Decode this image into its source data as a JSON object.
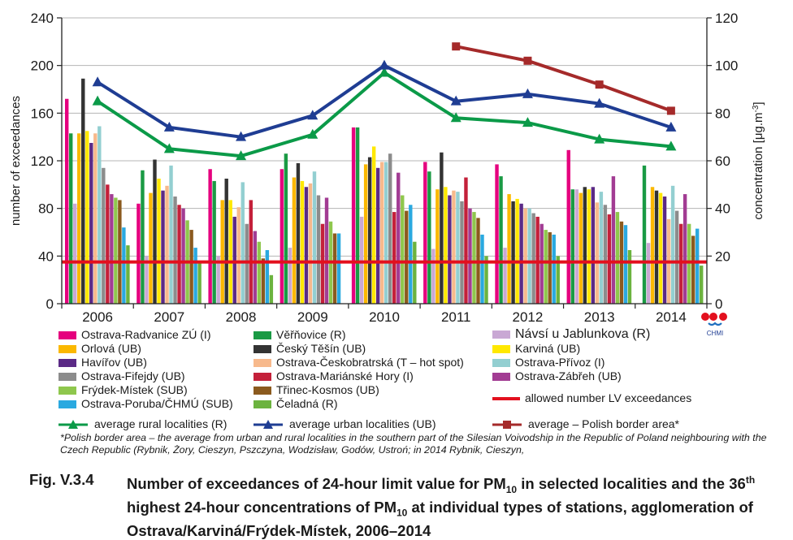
{
  "chart_data": {
    "type": "bar",
    "categories": [
      "2006",
      "2007",
      "2008",
      "2009",
      "2010",
      "2011",
      "2012",
      "2013",
      "2014"
    ],
    "y_left": {
      "label": "number of exceedances",
      "ticks": [
        0,
        40,
        80,
        120,
        160,
        200,
        240
      ],
      "range": [
        0,
        240
      ]
    },
    "y_right": {
      "label": "concentration [μg.m-3]",
      "ticks": [
        0,
        20,
        40,
        60,
        80,
        100,
        120
      ],
      "range": [
        0,
        120
      ]
    },
    "bar_series": [
      {
        "name": "Ostrava-Radvanice ZÚ (I)",
        "color": "#e5007e",
        "values": [
          172,
          84,
          113,
          113,
          148,
          119,
          117,
          129,
          null
        ]
      },
      {
        "name": "Věřňovice (R)",
        "color": "#1a9a44",
        "values": [
          143,
          112,
          103,
          126,
          148,
          111,
          107,
          96,
          116
        ]
      },
      {
        "name": "Návsí u Jablunkova (R)",
        "color": "#c9a8d4",
        "values": [
          84,
          40,
          40,
          47,
          73,
          46,
          47,
          96,
          51
        ]
      },
      {
        "name": "Orlová (UB)",
        "color": "#fbb800",
        "values": [
          143,
          93,
          87,
          106,
          117,
          96,
          92,
          93,
          98
        ]
      },
      {
        "name": "Český Těšín (UB)",
        "color": "#333333",
        "values": [
          189,
          121,
          105,
          118,
          123,
          127,
          86,
          98,
          95
        ]
      },
      {
        "name": "Karviná (UB)",
        "color": "#ffe800",
        "values": [
          145,
          105,
          87,
          103,
          132,
          98,
          88,
          96,
          93
        ]
      },
      {
        "name": "Havířov (UB)",
        "color": "#5b2a86",
        "values": [
          135,
          95,
          73,
          98,
          114,
          91,
          84,
          98,
          90
        ]
      },
      {
        "name": "Ostrava-Českobratrská (T – hot spot)",
        "color": "#f7b98c",
        "values": [
          143,
          99,
          81,
          101,
          119,
          95,
          80,
          85,
          71
        ]
      },
      {
        "name": "Ostrava-Přívoz (I)",
        "color": "#93cfd1",
        "values": [
          149,
          116,
          102,
          111,
          119,
          94,
          80,
          94,
          99
        ]
      },
      {
        "name": "Ostrava-Fifejdy (UB)",
        "color": "#8c8c8c",
        "values": [
          114,
          90,
          67,
          91,
          126,
          86,
          76,
          83,
          78
        ]
      },
      {
        "name": "Ostrava-Mariánské Hory (I)",
        "color": "#c4203a",
        "values": [
          100,
          83,
          87,
          67,
          77,
          106,
          73,
          75,
          67
        ]
      },
      {
        "name": "Ostrava-Zábřeh (UB)",
        "color": "#a23c93",
        "values": [
          92,
          80,
          61,
          89,
          110,
          80,
          67,
          107,
          92
        ]
      },
      {
        "name": "Frýdek-Místek (SUB)",
        "color": "#8fc74d",
        "values": [
          89,
          70,
          52,
          69,
          91,
          77,
          62,
          77,
          67
        ]
      },
      {
        "name": "Třinec-Kosmos (UB)",
        "color": "#8b5a1e",
        "values": [
          87,
          62,
          38,
          59,
          78,
          72,
          60,
          69,
          57
        ]
      },
      {
        "name": "Ostrava-Poruba/ČHMÚ (SUB)",
        "color": "#2aa9e0",
        "values": [
          64,
          47,
          45,
          59,
          83,
          58,
          58,
          66,
          63
        ]
      },
      {
        "name": "Čeladná (R)",
        "color": "#6cb33f",
        "values": [
          49,
          35,
          24,
          null,
          52,
          40,
          40,
          45,
          32
        ]
      }
    ],
    "limit_line": {
      "name": "allowed number LV exceedances",
      "color": "#e3101e",
      "value": 35
    },
    "line_series": [
      {
        "name": "average rural localities (R)",
        "color": "#0b9a48",
        "marker": "triangle",
        "values": [
          85,
          65,
          62,
          71,
          97,
          78,
          76,
          69,
          66
        ]
      },
      {
        "name": "average urban localities (UB)",
        "color": "#1f3d93",
        "marker": "triangle",
        "values": [
          93,
          74,
          70,
          79,
          100,
          85,
          88,
          84,
          74
        ]
      },
      {
        "name": "average  – Polish border area*",
        "color": "#a52a2a",
        "marker": "square",
        "values": [
          null,
          null,
          null,
          null,
          null,
          108,
          102,
          92,
          81
        ]
      }
    ]
  },
  "footnote": "*Polish border area – the average from urban and rural localities in the southern part of the Silesian Voivodship in the Republic of Poland neighbouring with the Czech Republic (Rybnik, Żory, Cieszyn, Pszczyna, Wodzisław, Godów, Ustroń; in 2014 Rybnik, Cieszyn,",
  "caption": {
    "prefix": "Fig. V.3.4",
    "text_a": "Number of exceedances of 24-hour limit value for PM",
    "sub_a": "10",
    "text_b": " in selected localities and the ",
    "n": "36",
    "sup": "th",
    "text_c": " highest 24-hour concentrations of PM",
    "sub_b": "10",
    "text_d": " at individual types of stations, agglomeration of Ostrava/Karviná/Frýdek-Místek, 2006–2014"
  },
  "logo": {
    "text": "CHMI"
  }
}
